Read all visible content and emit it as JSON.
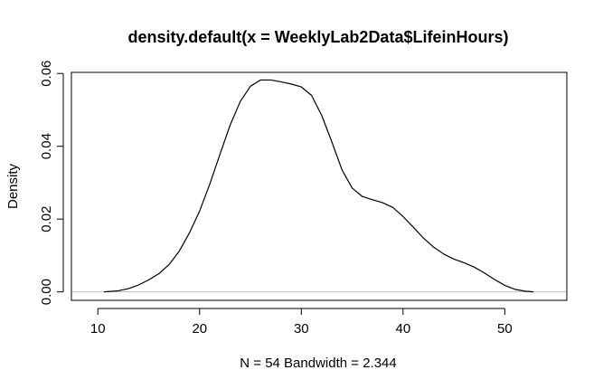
{
  "chart_data": {
    "type": "line",
    "title": "density.default(x = WeeklyLab2Data$LifeinHours)",
    "xlabel": "N = 54   Bandwidth = 2.344",
    "ylabel": "Density",
    "xlim": [
      7.4,
      56.1
    ],
    "ylim": [
      -0.00232,
      0.0603
    ],
    "x_ticks": [
      10,
      20,
      30,
      40,
      50
    ],
    "x_tick_labels": [
      "10",
      "20",
      "30",
      "40",
      "50"
    ],
    "y_ticks": [
      0.0,
      0.02,
      0.04,
      0.06
    ],
    "y_tick_labels": [
      "0.00",
      "0.02",
      "0.04",
      "0.06"
    ],
    "baseline": 0,
    "grid": false,
    "colors": {
      "line": "#000000",
      "baseline": "#bebebe",
      "frame": "#000000"
    },
    "series": [
      {
        "x": [
          10.6,
          12,
          13,
          14,
          15,
          16,
          17,
          18,
          19,
          20,
          21,
          22,
          23,
          24,
          25,
          26,
          27,
          28,
          29,
          30,
          31,
          32,
          33,
          34,
          35,
          36,
          37,
          38,
          39,
          40,
          41,
          42,
          43,
          44,
          45,
          46,
          47,
          48,
          49,
          50,
          51,
          52,
          52.8
        ],
        "y": [
          0.0,
          0.0003,
          0.0009,
          0.0019,
          0.0033,
          0.005,
          0.0075,
          0.0112,
          0.0162,
          0.0222,
          0.0296,
          0.0378,
          0.0458,
          0.0523,
          0.0565,
          0.0582,
          0.0582,
          0.0577,
          0.0571,
          0.0563,
          0.054,
          0.0485,
          0.0412,
          0.0335,
          0.0285,
          0.0262,
          0.0253,
          0.0245,
          0.0232,
          0.0207,
          0.0178,
          0.0148,
          0.0123,
          0.0104,
          0.009,
          0.008,
          0.0068,
          0.0052,
          0.0034,
          0.0018,
          0.0007,
          0.0002,
          0.0
        ]
      }
    ]
  }
}
